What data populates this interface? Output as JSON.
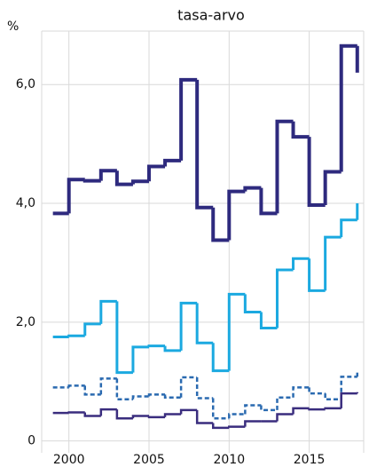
{
  "chart_data": {
    "type": "step",
    "title": "tasa-arvo",
    "y_unit": "%",
    "x": [
      1999,
      2000,
      2001,
      2002,
      2003,
      2004,
      2005,
      2006,
      2007,
      2008,
      2009,
      2010,
      2011,
      2012,
      2013,
      2014,
      2015,
      2016,
      2017,
      2018
    ],
    "series": [
      {
        "color": "#2e2a7e",
        "width": 4,
        "dashed": false,
        "values": [
          3.83,
          4.4,
          4.38,
          4.55,
          4.32,
          4.37,
          4.62,
          4.72,
          6.08,
          3.93,
          3.38,
          4.2,
          4.26,
          3.83,
          5.38,
          5.12,
          3.97,
          4.53,
          6.65,
          6.2
        ]
      },
      {
        "color": "#1ba9e0",
        "width": 3,
        "dashed": false,
        "values": [
          1.75,
          1.77,
          1.97,
          2.35,
          1.15,
          1.58,
          1.6,
          1.52,
          2.32,
          1.65,
          1.18,
          2.47,
          2.17,
          1.9,
          2.88,
          3.07,
          2.53,
          3.43,
          3.72,
          4.0
        ]
      },
      {
        "color": "#2a6ab0",
        "width": 2.5,
        "dashed": true,
        "values": [
          0.9,
          0.93,
          0.78,
          1.05,
          0.7,
          0.75,
          0.78,
          0.73,
          1.07,
          0.72,
          0.38,
          0.45,
          0.6,
          0.52,
          0.73,
          0.9,
          0.8,
          0.7,
          1.08,
          1.15
        ]
      },
      {
        "color": "#3a2d7e",
        "width": 2.5,
        "dashed": false,
        "values": [
          0.47,
          0.48,
          0.42,
          0.53,
          0.38,
          0.42,
          0.4,
          0.45,
          0.52,
          0.3,
          0.22,
          0.24,
          0.33,
          0.33,
          0.45,
          0.55,
          0.53,
          0.55,
          0.8,
          0.82
        ]
      }
    ],
    "xlim": [
      1998.3,
      2018.4
    ],
    "xticks": [
      2000,
      2005,
      2010,
      2015
    ],
    "ylim": [
      -0.2,
      6.9
    ],
    "yticks": [
      0,
      {
        "value": 2,
        "label": "2,0"
      },
      {
        "value": 4,
        "label": "4,0"
      },
      {
        "value": 6,
        "label": "6,0"
      }
    ],
    "grid": true
  }
}
